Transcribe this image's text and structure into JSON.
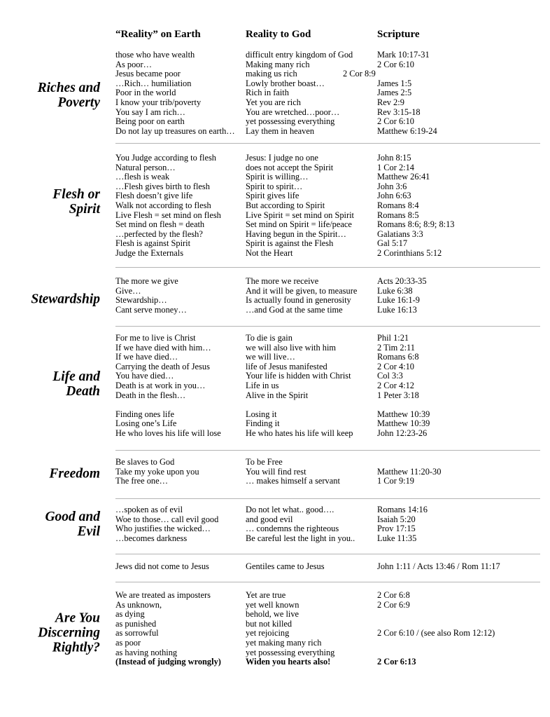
{
  "headers": {
    "earth": "“Reality” on Earth",
    "god": "Reality to God",
    "scripture": "Scripture"
  },
  "sections": [
    {
      "label": [
        "Riches and",
        "Poverty"
      ],
      "rows": [
        [
          "those who have wealth",
          "difficult entry kingdom of God",
          "Mark 10:17-31"
        ],
        [
          "As poor…",
          "Making many rich",
          "2 Cor 6:10"
        ],
        [
          "Jesus became poor",
          "making us rich",
          "2 Cor 8:9"
        ],
        [
          "…Rich… humiliation",
          "Lowly brother boast…",
          "James 1:5"
        ],
        [
          "Poor in the world",
          "Rich in faith",
          "James 2:5"
        ],
        [
          "I know your trib/poverty",
          "Yet you are rich",
          "Rev 2:9"
        ],
        [
          "You say I am rich…",
          "You are wretched…poor…",
          "Rev 3:15-18"
        ],
        [
          "Being poor on earth",
          "yet possessing everything",
          "2 Cor 6:10"
        ],
        [
          "Do not lay up treasures  on earth…",
          "Lay them in heaven",
          "Matthew 6:19-24"
        ]
      ]
    },
    {
      "label": [
        "Flesh or",
        "Spirit"
      ],
      "rows": [
        [
          "You Judge according to flesh",
          "Jesus: I judge no one",
          "John 8:15"
        ],
        [
          "Natural person…",
          "does not accept the Spirit",
          "1 Cor 2:14"
        ],
        [
          "…flesh is weak",
          "Spirit is willing…",
          "Matthew 26:41"
        ],
        [
          "…Flesh gives birth to flesh",
          "Spirit to spirit…",
          "John 3:6"
        ],
        [
          "Flesh doesn’t give life",
          "Spirit gives life",
          "John 6:63"
        ],
        [
          "Walk not according to flesh",
          "But according to Spirit",
          "Romans 8:4"
        ],
        [
          "Live Flesh = set mind on flesh",
          "Live Spirit = set mind on Spirit",
          "Romans 8:5"
        ],
        [
          "Set mind on flesh = death",
          "Set mind on Spirit = life/peace",
          "Romans 8:6; 8:9; 8:13"
        ],
        [
          "…perfected by the flesh?",
          "Having begun in the Spirit…",
          "Galatians 3:3"
        ],
        [
          "Flesh is against Spirit",
          "Spirit is against the Flesh",
          "Gal 5:17"
        ],
        [
          "Judge the Externals",
          "Not the Heart",
          "2 Corinthians 5:12"
        ]
      ]
    },
    {
      "label": [
        "Stewardship"
      ],
      "rows": [
        [
          "The more we give",
          "The more we receive",
          "Acts 20:33-35"
        ],
        [
          "Give…",
          "And it will be given, to measure",
          "Luke 6:38"
        ],
        [
          "Stewardship…",
          "Is actually found in generosity",
          "Luke 16:1-9"
        ],
        [
          "Cant serve money…",
          "…and God at the same time",
          "Luke 16:13"
        ]
      ]
    },
    {
      "label": [
        "Life and",
        "Death"
      ],
      "rows": [
        [
          "For me to live is Christ",
          "To die is gain",
          "Phil 1:21"
        ],
        [
          "If we have died with him…",
          "we will also live with him",
          "2 Tim 2:11"
        ],
        [
          "If we have died…",
          "we will live…",
          "Romans 6:8"
        ],
        [
          "Carrying the death of Jesus",
          "life of Jesus manifested",
          "2 Cor 4:10"
        ],
        [
          "You have died…",
          "Your life is hidden with Christ",
          "Col 3:3"
        ],
        [
          "Death is at work in you…",
          "Life in us",
          "2 Cor 4:12"
        ],
        [
          "Death in the flesh…",
          "Alive in the Spirit",
          "1 Peter 3:18"
        ],
        [
          "",
          "",
          ""
        ],
        [
          "Finding ones life",
          "Losing it",
          "Matthew 10:39"
        ],
        [
          "Losing one’s Life",
          "Finding it",
          "Matthew 10:39"
        ],
        [
          "He who loves his life will lose",
          "He who hates his life will keep",
          "John 12:23-26"
        ]
      ]
    },
    {
      "label": [
        "Freedom"
      ],
      "rows": [
        [
          "Be slaves to God",
          "To be Free",
          ""
        ],
        [
          "Take my yoke upon you",
          "You will find rest",
          "Matthew 11:20-30"
        ],
        [
          "The free one…",
          "… makes himself a servant",
          "1 Cor 9:19"
        ]
      ]
    },
    {
      "label": [
        "Good and",
        "Evil"
      ],
      "rows": [
        [
          "…spoken as of evil",
          "Do not let what.. good….",
          "Romans 14:16"
        ],
        [
          "Woe to those… call evil good",
          "and good evil",
          "Isaiah 5:20"
        ],
        [
          "Who justifies the wicked…",
          "… condemns the righteous",
          "Prov 17:15"
        ],
        [
          "…becomes darkness",
          "Be careful lest the light in you..",
          "Luke 11:35"
        ]
      ]
    },
    {
      "label": [],
      "rows": [
        [
          "Jews did not come to Jesus",
          "Gentiles came to Jesus",
          "John 1:11 / Acts 13:46 / Rom 11:17"
        ]
      ]
    },
    {
      "label": [
        "Are You",
        "Discerning",
        "Rightly?"
      ],
      "rows": [
        [
          "We are treated as imposters",
          "Yet are true",
          "2 Cor 6:8"
        ],
        [
          "As unknown,",
          "yet well known",
          "2 Cor 6:9"
        ],
        [
          "as dying",
          "behold, we live",
          ""
        ],
        [
          "as punished",
          "but not killed",
          ""
        ],
        [
          "as sorrowful",
          "yet rejoicing",
          "2 Cor 6:10 / (see also Rom 12:12)"
        ],
        [
          "as poor",
          "yet making many rich",
          ""
        ],
        [
          "as having nothing",
          "yet possessing everything",
          ""
        ],
        [
          "(Instead of judging wrongly)",
          "Widen you hearts also!",
          "2 Cor 6:13"
        ]
      ]
    }
  ]
}
